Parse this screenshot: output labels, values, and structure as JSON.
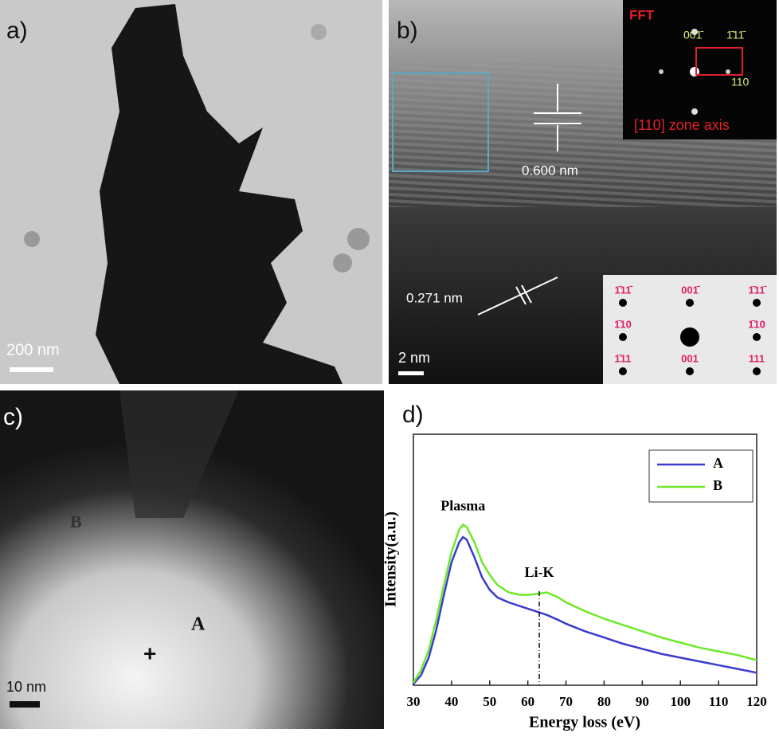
{
  "panels": {
    "a": {
      "label": "a)",
      "scale_bar": "200 nm"
    },
    "b": {
      "label": "b)",
      "fft_title": "FFT",
      "fft_indices": [
        "001̄",
        "1̄11̄",
        "110"
      ],
      "zone_axis": "[110] zone axis",
      "spacing_1": "0.600 nm",
      "spacing_2": "0.271 nm",
      "scale_bar": "2 nm",
      "pattern_indices": [
        "1̄11̄",
        "001̄",
        "1̄11̄",
        "1̄10",
        "1̄10",
        "1̄11",
        "001",
        "111"
      ]
    },
    "c": {
      "label": "c)",
      "point_b": "B",
      "point_a": "A",
      "marker": "+",
      "scale_bar": "10 nm"
    }
  },
  "chart_data": {
    "type": "line",
    "label": "d)",
    "xlabel": "Energy loss (eV)",
    "ylabel": "Intensity(a.u.)",
    "x": [
      30,
      32,
      34,
      36,
      38,
      40,
      42,
      43,
      44,
      46,
      48,
      50,
      52,
      55,
      58,
      60,
      63,
      65,
      68,
      70,
      75,
      80,
      85,
      90,
      95,
      100,
      105,
      110,
      115,
      120
    ],
    "series": [
      {
        "name": "A",
        "color": "#3b3bcf",
        "values": [
          0.5,
          4,
          11,
          22,
          36,
          49,
          57,
          59,
          58,
          51,
          43,
          38,
          35,
          33,
          31.5,
          30.5,
          29,
          28,
          26,
          24.5,
          21.5,
          19,
          16.5,
          14.5,
          12.5,
          11,
          9.5,
          8,
          6.5,
          5
        ]
      },
      {
        "name": "B",
        "color": "#6ee82a",
        "values": [
          1,
          6,
          14,
          26,
          40,
          53,
          62,
          64,
          63,
          57,
          49,
          44,
          40,
          37,
          36,
          36,
          36.5,
          37,
          35,
          33,
          29.5,
          26.5,
          24,
          21.5,
          19,
          17,
          15,
          13.5,
          12,
          10
        ]
      }
    ],
    "xlim": [
      30,
      120
    ],
    "xticks": [
      30,
      40,
      50,
      60,
      70,
      80,
      90,
      100,
      110,
      120
    ],
    "ylim": [
      0,
      100
    ],
    "legend": "upper right",
    "annotations": [
      {
        "text": "Plasma"
      },
      {
        "text": "Li-K",
        "x": 63
      }
    ]
  }
}
